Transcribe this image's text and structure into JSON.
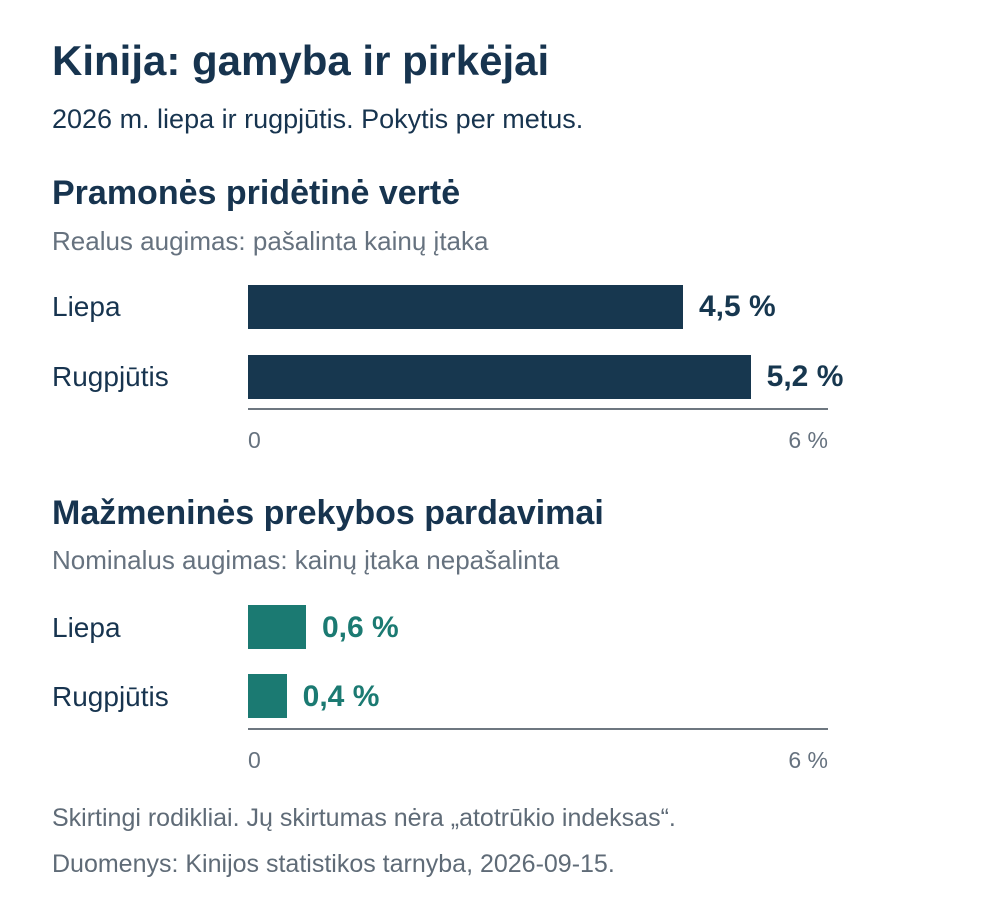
{
  "title": "Kinija: gamyba ir pirkėjai",
  "subtitle": "2026 m. liepa ir rugpjūtis. Pokytis per metus.",
  "chart_data": [
    {
      "type": "bar",
      "orientation": "horizontal",
      "title": "Pramonės pridėtinė vertė",
      "subtitle": "Realus augimas: pašalinta kainų įtaka",
      "categories": [
        "Liepa",
        "Rugpjūtis"
      ],
      "values": [
        4.5,
        5.2
      ],
      "value_labels": [
        "4,5 %",
        "5,2 %"
      ],
      "xlim": [
        0,
        6
      ],
      "tick_labels": [
        "0",
        "6 %"
      ],
      "color": "#17374f",
      "grid": false
    },
    {
      "type": "bar",
      "orientation": "horizontal",
      "title": "Mažmeninės prekybos pardavimai",
      "subtitle": "Nominalus augimas: kainų įtaka nepašalinta",
      "categories": [
        "Liepa",
        "Rugpjūtis"
      ],
      "values": [
        0.6,
        0.4
      ],
      "value_labels": [
        "0,6 %",
        "0,4 %"
      ],
      "xlim": [
        0,
        6
      ],
      "tick_labels": [
        "0",
        "6 %"
      ],
      "color": "#1b7a72",
      "grid": false
    }
  ],
  "footnotes": {
    "note": "Skirtingi rodikliai. Jų skirtumas nėra „atotrūkio indeksas“.",
    "source": "Duomenys: Kinijos statistikos tarnyba, 2026-09-15."
  }
}
